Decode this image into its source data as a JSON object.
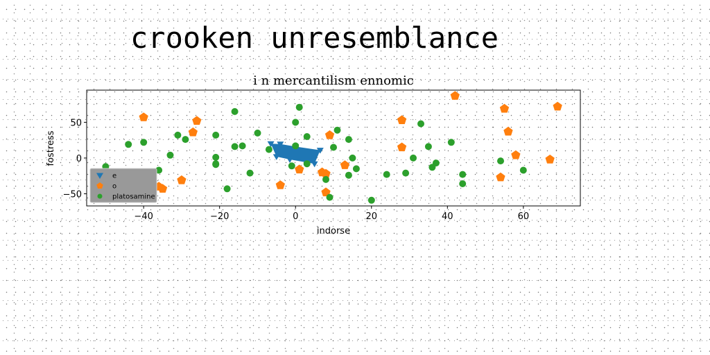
{
  "suptitle": "crooken unresemblance",
  "chart_data": {
    "type": "scatter",
    "title": "i n mercantilism ennomic",
    "xlabel": "indorse",
    "ylabel": "fostress",
    "xlim": [
      -55,
      75
    ],
    "ylim": [
      -67,
      95
    ],
    "xticks": [
      -40,
      -20,
      0,
      20,
      40,
      60
    ],
    "yticks": [
      -50,
      0,
      50
    ],
    "grid": false,
    "legend_position": "lower-left",
    "series": [
      {
        "name": "e",
        "marker": "triangle-down",
        "color": "#1f77b4",
        "points": [
          [
            -6.5,
            20
          ],
          [
            -4.0,
            19.5
          ],
          [
            0.0,
            16
          ],
          [
            6.5,
            11
          ],
          [
            5.0,
            -8
          ],
          [
            -1.5,
            -2
          ],
          [
            -5.0,
            2
          ]
        ]
      },
      {
        "name": "o",
        "marker": "pentagon",
        "color": "#ff7f0e",
        "points": [
          [
            -40,
            57
          ],
          [
            -26,
            52
          ],
          [
            -27,
            36
          ],
          [
            -36,
            -40
          ],
          [
            -35,
            -43
          ],
          [
            -30,
            -31
          ],
          [
            -4,
            -38
          ],
          [
            1,
            -16
          ],
          [
            7,
            -20
          ],
          [
            8,
            -22
          ],
          [
            8,
            -48
          ],
          [
            9,
            32
          ],
          [
            13,
            -10
          ],
          [
            28,
            53
          ],
          [
            28,
            15
          ],
          [
            42,
            87
          ],
          [
            55,
            69
          ],
          [
            56,
            37
          ],
          [
            58,
            4
          ],
          [
            54,
            -27
          ],
          [
            67,
            -2
          ],
          [
            69,
            72
          ]
        ]
      },
      {
        "name": "platosamine",
        "marker": "circle",
        "color": "#2ca02c",
        "points": [
          [
            -50,
            -12
          ],
          [
            -44,
            19
          ],
          [
            -40,
            22
          ],
          [
            -36,
            -17
          ],
          [
            -33,
            4
          ],
          [
            -31,
            32
          ],
          [
            -29,
            26
          ],
          [
            -21,
            32
          ],
          [
            -21,
            -8
          ],
          [
            -21,
            -9
          ],
          [
            -21,
            1
          ],
          [
            -18,
            -43
          ],
          [
            -16,
            65
          ],
          [
            -16,
            16
          ],
          [
            -14,
            17
          ],
          [
            -12,
            -21
          ],
          [
            -10,
            35
          ],
          [
            -7,
            12
          ],
          [
            -1,
            -11
          ],
          [
            0,
            50
          ],
          [
            0,
            17
          ],
          [
            1,
            71
          ],
          [
            3,
            -8
          ],
          [
            3,
            30
          ],
          [
            8,
            -30
          ],
          [
            9,
            -55
          ],
          [
            10,
            15
          ],
          [
            11,
            39
          ],
          [
            14,
            26
          ],
          [
            14,
            -24
          ],
          [
            15,
            0
          ],
          [
            16,
            -15
          ],
          [
            20,
            -59
          ],
          [
            24,
            -23
          ],
          [
            29,
            -21
          ],
          [
            31,
            0
          ],
          [
            33,
            48
          ],
          [
            35,
            16
          ],
          [
            36,
            -13
          ],
          [
            37,
            -7
          ],
          [
            41,
            22
          ],
          [
            44,
            -23
          ],
          [
            44,
            -36
          ],
          [
            54,
            -4
          ],
          [
            60,
            -17
          ]
        ]
      }
    ]
  }
}
